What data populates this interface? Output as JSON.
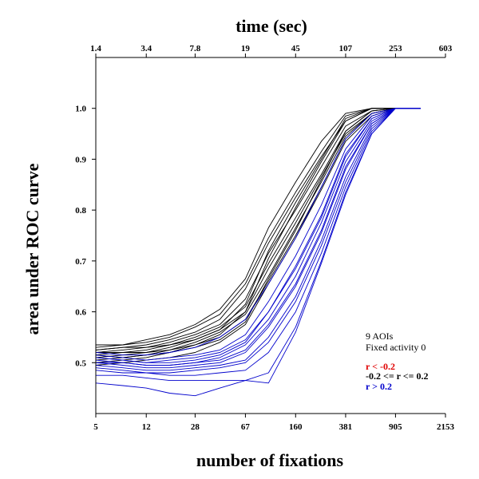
{
  "chart_data": {
    "type": "line",
    "xlabel": "number of fixations",
    "ylabel": "area under ROC curve",
    "x2label": "time (sec)",
    "xscale": "log",
    "xlim": [
      5,
      2153
    ],
    "ylim": [
      0.4,
      1.1
    ],
    "x_ticks": [
      5,
      12,
      28,
      67,
      160,
      381,
      905,
      2153
    ],
    "x_tick_labels": [
      "5",
      "12",
      "28",
      "67",
      "160",
      "381",
      "905",
      "2153"
    ],
    "x2_tick_labels": [
      "1.4",
      "3.4",
      "7.8",
      "19",
      "45",
      "107",
      "253",
      "603"
    ],
    "y_ticks": [
      0.5,
      0.6,
      0.7,
      0.8,
      0.9,
      1.0
    ],
    "y_tick_labels": [
      "0.5",
      "0.6",
      "0.7",
      "0.8",
      "0.9",
      "1.0"
    ],
    "grid": false,
    "legend": {
      "placement": "right",
      "heading": [
        "9 AOIs",
        "Fixed activity 0"
      ],
      "entries": [
        {
          "label": "r < -0.2",
          "color": "#e00000"
        },
        {
          "label": "-0.2 <= r <= 0.2",
          "color": "#000000"
        },
        {
          "label": "r > 0.2",
          "color": "#0000cc"
        }
      ]
    },
    "x": [
      5,
      8,
      12,
      18,
      28,
      43,
      67,
      100,
      160,
      250,
      381,
      600,
      905,
      1400
    ],
    "series": [
      {
        "group": "black",
        "values": [
          0.535,
          0.535,
          0.545,
          0.555,
          0.575,
          0.605,
          0.665,
          0.765,
          0.855,
          0.935,
          0.99,
          1.0,
          1.0,
          1.0
        ]
      },
      {
        "group": "black",
        "values": [
          0.53,
          0.535,
          0.54,
          0.55,
          0.57,
          0.595,
          0.655,
          0.745,
          0.835,
          0.915,
          0.985,
          1.0,
          1.0,
          1.0
        ]
      },
      {
        "group": "black",
        "values": [
          0.525,
          0.53,
          0.535,
          0.545,
          0.56,
          0.585,
          0.645,
          0.735,
          0.825,
          0.905,
          0.975,
          1.0,
          1.0,
          1.0
        ]
      },
      {
        "group": "black",
        "values": [
          0.52,
          0.525,
          0.53,
          0.54,
          0.555,
          0.575,
          0.625,
          0.715,
          0.8,
          0.885,
          0.965,
          0.995,
          1.0,
          1.0
        ]
      },
      {
        "group": "black",
        "values": [
          0.515,
          0.52,
          0.525,
          0.535,
          0.55,
          0.57,
          0.61,
          0.695,
          0.785,
          0.87,
          0.955,
          0.995,
          1.0,
          1.0
        ]
      },
      {
        "group": "black",
        "values": [
          0.51,
          0.515,
          0.52,
          0.53,
          0.545,
          0.565,
          0.6,
          0.685,
          0.775,
          0.865,
          0.95,
          0.99,
          1.0,
          1.0
        ]
      },
      {
        "group": "black",
        "values": [
          0.505,
          0.51,
          0.515,
          0.525,
          0.54,
          0.56,
          0.595,
          0.67,
          0.765,
          0.855,
          0.945,
          0.99,
          1.0,
          1.0
        ]
      },
      {
        "group": "black",
        "values": [
          0.5,
          0.505,
          0.51,
          0.52,
          0.535,
          0.55,
          0.585,
          0.66,
          0.75,
          0.845,
          0.94,
          0.99,
          1.0,
          1.0
        ]
      },
      {
        "group": "black",
        "values": [
          0.52,
          0.52,
          0.52,
          0.525,
          0.535,
          0.555,
          0.6,
          0.705,
          0.805,
          0.895,
          0.975,
          1.0,
          1.0,
          1.0
        ]
      },
      {
        "group": "black",
        "values": [
          0.515,
          0.51,
          0.515,
          0.52,
          0.53,
          0.545,
          0.58,
          0.665,
          0.76,
          0.86,
          0.955,
          0.995,
          1.0,
          1.0
        ]
      },
      {
        "group": "black",
        "values": [
          0.525,
          0.53,
          0.53,
          0.535,
          0.545,
          0.565,
          0.615,
          0.72,
          0.815,
          0.9,
          0.98,
          1.0,
          1.0,
          1.0
        ]
      },
      {
        "group": "black",
        "values": [
          0.495,
          0.5,
          0.505,
          0.51,
          0.52,
          0.54,
          0.575,
          0.655,
          0.745,
          0.84,
          0.935,
          0.985,
          1.0,
          1.0
        ]
      },
      {
        "group": "blue",
        "values": [
          0.52,
          0.515,
          0.515,
          0.52,
          0.53,
          0.55,
          0.585,
          0.655,
          0.745,
          0.845,
          0.94,
          0.99,
          1.0,
          1.0
        ]
      },
      {
        "group": "blue",
        "values": [
          0.515,
          0.51,
          0.505,
          0.51,
          0.515,
          0.525,
          0.555,
          0.62,
          0.71,
          0.81,
          0.92,
          0.985,
          1.0,
          1.0
        ]
      },
      {
        "group": "blue",
        "values": [
          0.51,
          0.505,
          0.5,
          0.505,
          0.51,
          0.52,
          0.545,
          0.6,
          0.69,
          0.79,
          0.91,
          0.98,
          1.0,
          1.0
        ]
      },
      {
        "group": "blue",
        "values": [
          0.505,
          0.5,
          0.495,
          0.495,
          0.5,
          0.51,
          0.535,
          0.585,
          0.67,
          0.775,
          0.895,
          0.975,
          1.0,
          1.0
        ]
      },
      {
        "group": "blue",
        "values": [
          0.5,
          0.495,
          0.49,
          0.49,
          0.495,
          0.5,
          0.52,
          0.57,
          0.65,
          0.755,
          0.88,
          0.97,
          1.0,
          1.0
        ]
      },
      {
        "group": "blue",
        "values": [
          0.495,
          0.49,
          0.485,
          0.485,
          0.49,
          0.495,
          0.505,
          0.55,
          0.63,
          0.74,
          0.865,
          0.965,
          1.0,
          1.0
        ]
      },
      {
        "group": "blue",
        "values": [
          0.49,
          0.485,
          0.48,
          0.48,
          0.485,
          0.49,
          0.5,
          0.54,
          0.62,
          0.73,
          0.855,
          0.96,
          1.0,
          1.0
        ]
      },
      {
        "group": "blue",
        "values": [
          0.485,
          0.48,
          0.48,
          0.475,
          0.475,
          0.48,
          0.485,
          0.52,
          0.6,
          0.715,
          0.845,
          0.955,
          1.0,
          1.0
        ]
      },
      {
        "group": "blue",
        "values": [
          0.475,
          0.475,
          0.47,
          0.465,
          0.465,
          0.465,
          0.465,
          0.48,
          0.57,
          0.7,
          0.835,
          0.95,
          1.0,
          1.0
        ]
      },
      {
        "group": "blue",
        "values": [
          0.46,
          0.455,
          0.45,
          0.44,
          0.435,
          0.45,
          0.465,
          0.46,
          0.56,
          0.695,
          0.83,
          0.95,
          1.0,
          1.0
        ]
      },
      {
        "group": "blue",
        "values": [
          0.51,
          0.505,
          0.5,
          0.5,
          0.505,
          0.515,
          0.54,
          0.6,
          0.685,
          0.785,
          0.905,
          0.98,
          1.0,
          1.0
        ]
      },
      {
        "group": "blue",
        "values": [
          0.5,
          0.5,
          0.495,
          0.495,
          0.5,
          0.505,
          0.525,
          0.575,
          0.655,
          0.76,
          0.885,
          0.97,
          1.0,
          1.0
        ]
      }
    ]
  },
  "colors": {
    "black": "#000000",
    "blue": "#0000cc",
    "red": "#e00000"
  }
}
